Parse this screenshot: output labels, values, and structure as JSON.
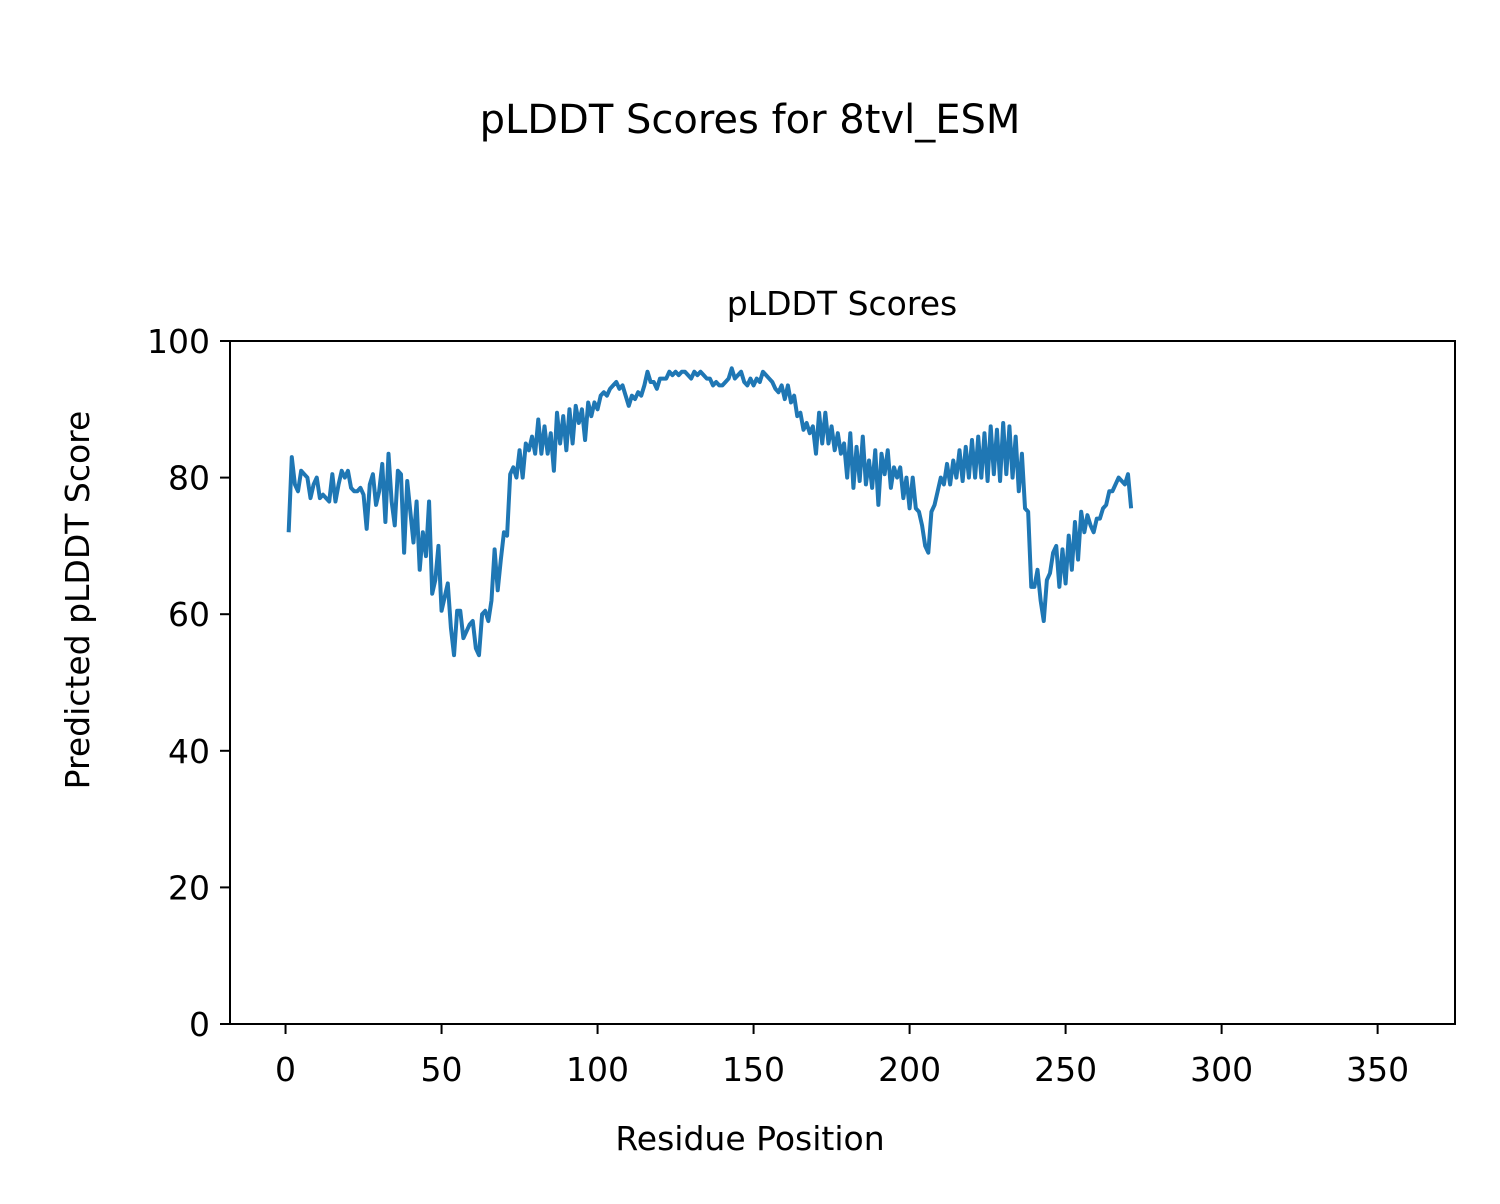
{
  "figure": {
    "suptitle": "pLDDT Scores for 8tvl_ESM"
  },
  "chart_data": {
    "type": "line",
    "title": "pLDDT Scores",
    "xlabel": "Residue Position",
    "ylabel": "Predicted pLDDT Score",
    "xlim": [
      -17.8,
      374.8
    ],
    "ylim": [
      0,
      100
    ],
    "xticks": [
      0,
      50,
      100,
      150,
      200,
      250,
      300,
      350
    ],
    "yticks": [
      0,
      20,
      40,
      60,
      80,
      100
    ],
    "grid": false,
    "legend": "none",
    "series": [
      {
        "color": "#1f77b4",
        "x_start": 1,
        "x_step": 1,
        "values": [
          72,
          83,
          79,
          78,
          81,
          80.5,
          80,
          77,
          79,
          80,
          77,
          77.5,
          77,
          76.5,
          80.5,
          76.5,
          79,
          81,
          80,
          81,
          78.5,
          78,
          78,
          78.5,
          77.5,
          72.5,
          79,
          80.5,
          76,
          78,
          82,
          73.5,
          83.5,
          76.5,
          73,
          81,
          80.5,
          69,
          79.5,
          75,
          70.5,
          76.5,
          66.5,
          72,
          68.5,
          76.5,
          63,
          65,
          70,
          60.5,
          62.5,
          64.5,
          58,
          54,
          60.5,
          60.5,
          56.5,
          57.5,
          58.5,
          59,
          55,
          54,
          60,
          60.5,
          59,
          62,
          69.5,
          63.5,
          68,
          72,
          71.5,
          80.5,
          81.5,
          80,
          84,
          80,
          85,
          84,
          86,
          83.5,
          88.5,
          83.5,
          87.5,
          83.5,
          86.5,
          81,
          89.5,
          85,
          89,
          84,
          90,
          85,
          90.5,
          88,
          90,
          85.5,
          91,
          89,
          91,
          90,
          92,
          92.5,
          92,
          93,
          93.5,
          94,
          93,
          93.5,
          92,
          90.5,
          92,
          91.5,
          92.5,
          92,
          93.5,
          95.5,
          94,
          94,
          93,
          94.5,
          94.5,
          94.5,
          95.5,
          95,
          95.5,
          95,
          95.5,
          95.5,
          95,
          94.5,
          95.5,
          95,
          95.5,
          95,
          94.5,
          94.5,
          93.5,
          94,
          93.5,
          93.5,
          94,
          94.5,
          96,
          94.5,
          95,
          95.5,
          94,
          93.5,
          94.5,
          93.5,
          94.5,
          94,
          95.5,
          95,
          94.5,
          94,
          93,
          92.5,
          93.5,
          91.5,
          93.5,
          91,
          92,
          89,
          89.5,
          87,
          88,
          86.5,
          87.5,
          83.5,
          89.5,
          85,
          89.5,
          85,
          87.5,
          84,
          86.5,
          83.5,
          85,
          80,
          86.5,
          78.5,
          84.5,
          79.5,
          86,
          79,
          82.5,
          78.5,
          84,
          76,
          83.5,
          80.5,
          84,
          78.5,
          81.5,
          80,
          81.5,
          77,
          80,
          75.5,
          80,
          75.5,
          75,
          73,
          70,
          69,
          75,
          76,
          78,
          80,
          79,
          82,
          79,
          82.5,
          80,
          84,
          79.5,
          84.5,
          80,
          85.5,
          80,
          86,
          80,
          86.5,
          79.5,
          87.5,
          80.5,
          87,
          79.5,
          88,
          80.5,
          87.5,
          80,
          86,
          78,
          83.5,
          75.5,
          75,
          64,
          64,
          66.5,
          62,
          59,
          65,
          66,
          69,
          70,
          64,
          69.5,
          64.5,
          71.5,
          66.5,
          73.5,
          68,
          75,
          72,
          74.5,
          73,
          72,
          74,
          74,
          75.5,
          76,
          78,
          78,
          79,
          80,
          79.5,
          79,
          80.5,
          75.5
        ]
      }
    ]
  }
}
